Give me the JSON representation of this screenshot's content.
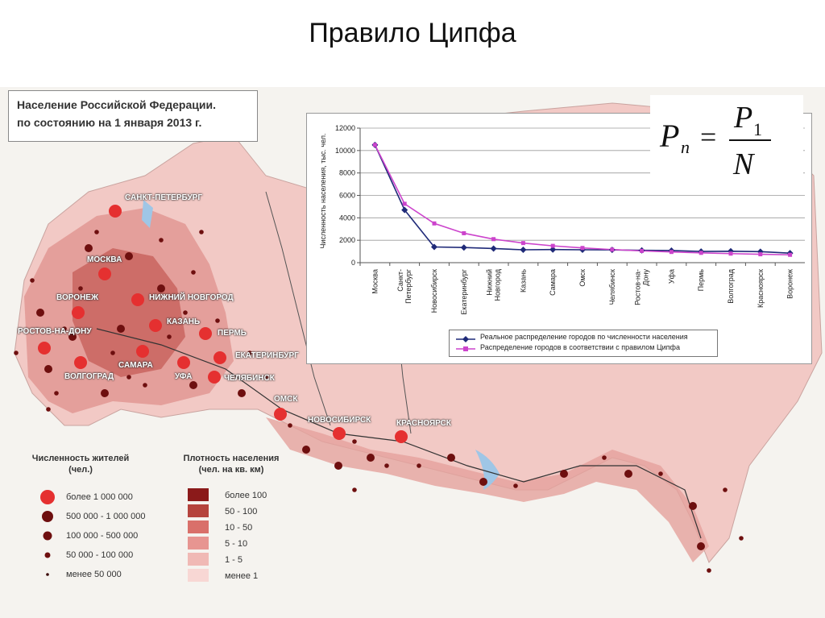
{
  "slide": {
    "title": "Правило Ципфа"
  },
  "map": {
    "title_line1": "Население Российской Федерации.",
    "title_line2": "по состоянию на 1 января 2013 г.",
    "cities": [
      {
        "name": "САНКТ-ПЕТЕРБУРГ"
      },
      {
        "name": "МОСКВА"
      },
      {
        "name": "НИЖНИЙ НОВГОРОД"
      },
      {
        "name": "ВОРОНЕЖ"
      },
      {
        "name": "КАЗАНЬ"
      },
      {
        "name": "ПЕРМЬ"
      },
      {
        "name": "РОСТОВ-НА-ДОНУ"
      },
      {
        "name": "ЕКАТЕРИНБУРГ"
      },
      {
        "name": "САМАРА"
      },
      {
        "name": "ВОЛГОГРАД"
      },
      {
        "name": "УФА"
      },
      {
        "name": "ЧЕЛЯБИНСК"
      },
      {
        "name": "ОМСК"
      },
      {
        "name": "НОВОСИБИРСК"
      },
      {
        "name": "КРАСНОЯРСК"
      }
    ],
    "legend_population": {
      "title_line1": "Численность жителей",
      "title_line2": "(чел.)",
      "items": [
        "более 1 000 000",
        "500 000 - 1 000 000",
        "100 000 - 500 000",
        "50 000 - 100 000",
        "менее 50 000"
      ]
    },
    "legend_density": {
      "title_line1": "Плотность населения",
      "title_line2": "(чел. на кв. км)",
      "items": [
        "более 100",
        "50 - 100",
        "10 - 50",
        "5 - 10",
        "1 - 5",
        "менее 1"
      ],
      "colors": [
        "#8b1a1a",
        "#b5443d",
        "#d9706a",
        "#e79591",
        "#f0b9b5",
        "#f8d7d4"
      ]
    }
  },
  "formula": {
    "lhs": "P",
    "lhs_sub": "n",
    "equals": "=",
    "numerator": "P",
    "numerator_sub": "1",
    "denominator": "N"
  },
  "chart_data": {
    "type": "line",
    "ylabel": "Численность населения, тыс. чел.",
    "xlabel": "",
    "ylim": [
      0,
      12000
    ],
    "yticks": [
      "0",
      "2000",
      "4000",
      "6000",
      "8000",
      "10000",
      "12000"
    ],
    "categories": [
      "Москва",
      "Санкт-Петербург",
      "Новосибирск",
      "Екатеринбург",
      "Нижний Новгород",
      "Казань",
      "Самара",
      "Омск",
      "Челябинск",
      "Ростов-на-Дону",
      "Уфа",
      "Пермь",
      "Волгоград",
      "Красноярск",
      "Воронеж"
    ],
    "category_lines": [
      [
        "Москва"
      ],
      [
        "Санкт-",
        "Петербург"
      ],
      [
        "Новосибирск"
      ],
      [
        "Екатеринбург"
      ],
      [
        "Нижний",
        "Новгород"
      ],
      [
        "Казань"
      ],
      [
        "Самара"
      ],
      [
        "Омск"
      ],
      [
        "Челябинск"
      ],
      [
        "Ростов-на-",
        "Дону"
      ],
      [
        "Уфа"
      ],
      [
        "Пермь"
      ],
      [
        "Волгоград"
      ],
      [
        "Красноярск"
      ],
      [
        "Воронеж"
      ]
    ],
    "series": [
      {
        "name": "Реальное распределение городов по численности населения",
        "color": "#1f2a78",
        "marker": "diamond",
        "values": [
          10500,
          4700,
          1400,
          1350,
          1260,
          1150,
          1170,
          1150,
          1140,
          1100,
          1080,
          1000,
          1020,
          980,
          850
        ]
      },
      {
        "name": "Распределение городов в соответствии с правилом Ципфа",
        "color": "#cc44cc",
        "marker": "square",
        "values": [
          10500,
          5250,
          3500,
          2625,
          2100,
          1750,
          1500,
          1313,
          1167,
          1050,
          955,
          875,
          808,
          750,
          700
        ]
      }
    ],
    "grid": true,
    "legend": "bottom"
  }
}
